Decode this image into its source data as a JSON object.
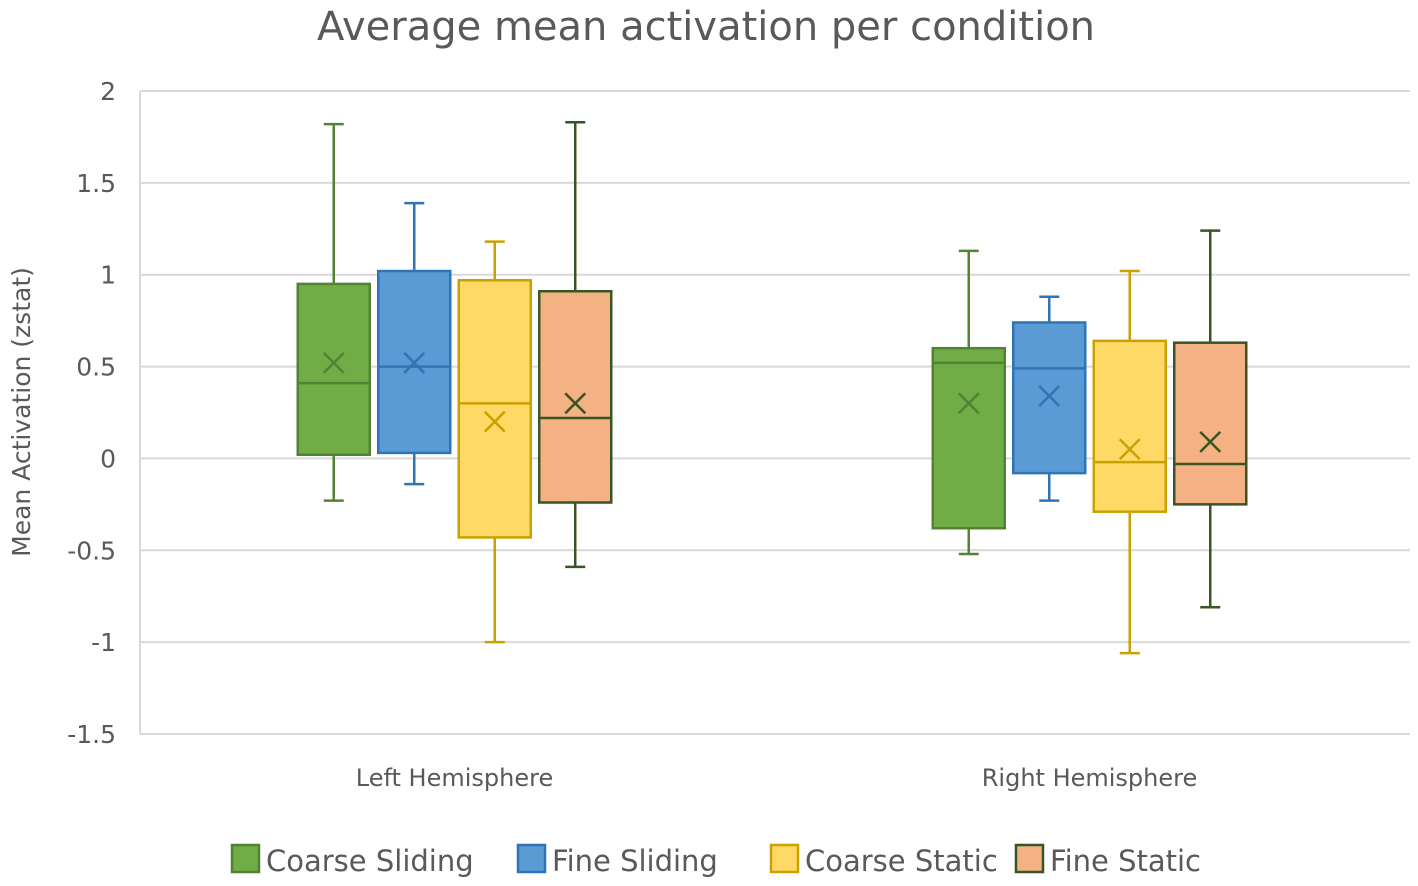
{
  "chart_data": {
    "type": "box",
    "title": "Average mean activation per condition",
    "ylabel": "Mean Activation (zstat)",
    "xlabel": "",
    "ylim": [
      -1.5,
      2
    ],
    "yticks": [
      2,
      1.5,
      1,
      0.5,
      0,
      -0.5,
      -1,
      -1.5
    ],
    "ytick_labels": [
      "2",
      "1.5",
      "1",
      "0.5",
      "0",
      "-0.5",
      "-1",
      "-1.5"
    ],
    "grid": true,
    "legend_position": "bottom",
    "categories": [
      "Left Hemisphere",
      "Right Hemisphere"
    ],
    "series": [
      {
        "name": "Coarse Sliding",
        "fill": "#70ad47",
        "stroke": "#548235",
        "stats": [
          {
            "min": -0.23,
            "q1": 0.02,
            "median": 0.41,
            "q3": 0.95,
            "max": 1.82,
            "mean": 0.52
          },
          {
            "min": -0.52,
            "q1": -0.38,
            "median": 0.52,
            "q3": 0.6,
            "max": 1.13,
            "mean": 0.3
          }
        ]
      },
      {
        "name": "Fine Sliding",
        "fill": "#5b9bd5",
        "stroke": "#2e75b6",
        "stats": [
          {
            "min": -0.14,
            "q1": 0.03,
            "median": 0.5,
            "q3": 1.02,
            "max": 1.39,
            "mean": 0.52
          },
          {
            "min": -0.23,
            "q1": -0.08,
            "median": 0.49,
            "q3": 0.74,
            "max": 0.88,
            "mean": 0.34
          }
        ]
      },
      {
        "name": "Coarse Static",
        "fill": "#ffd966",
        "stroke": "#c9a100",
        "stats": [
          {
            "min": -1.0,
            "q1": -0.43,
            "median": 0.3,
            "q3": 0.97,
            "max": 1.18,
            "mean": 0.2
          },
          {
            "min": -1.06,
            "q1": -0.29,
            "median": -0.02,
            "q3": 0.64,
            "max": 1.02,
            "mean": 0.05
          }
        ]
      },
      {
        "name": "Fine Static",
        "fill": "#f4b183",
        "stroke": "#375623",
        "stats": [
          {
            "min": -0.59,
            "q1": -0.24,
            "median": 0.22,
            "q3": 0.91,
            "max": 1.83,
            "mean": 0.3
          },
          {
            "min": -0.81,
            "q1": -0.25,
            "median": -0.03,
            "q3": 0.63,
            "max": 1.24,
            "mean": 0.09
          }
        ]
      }
    ]
  }
}
